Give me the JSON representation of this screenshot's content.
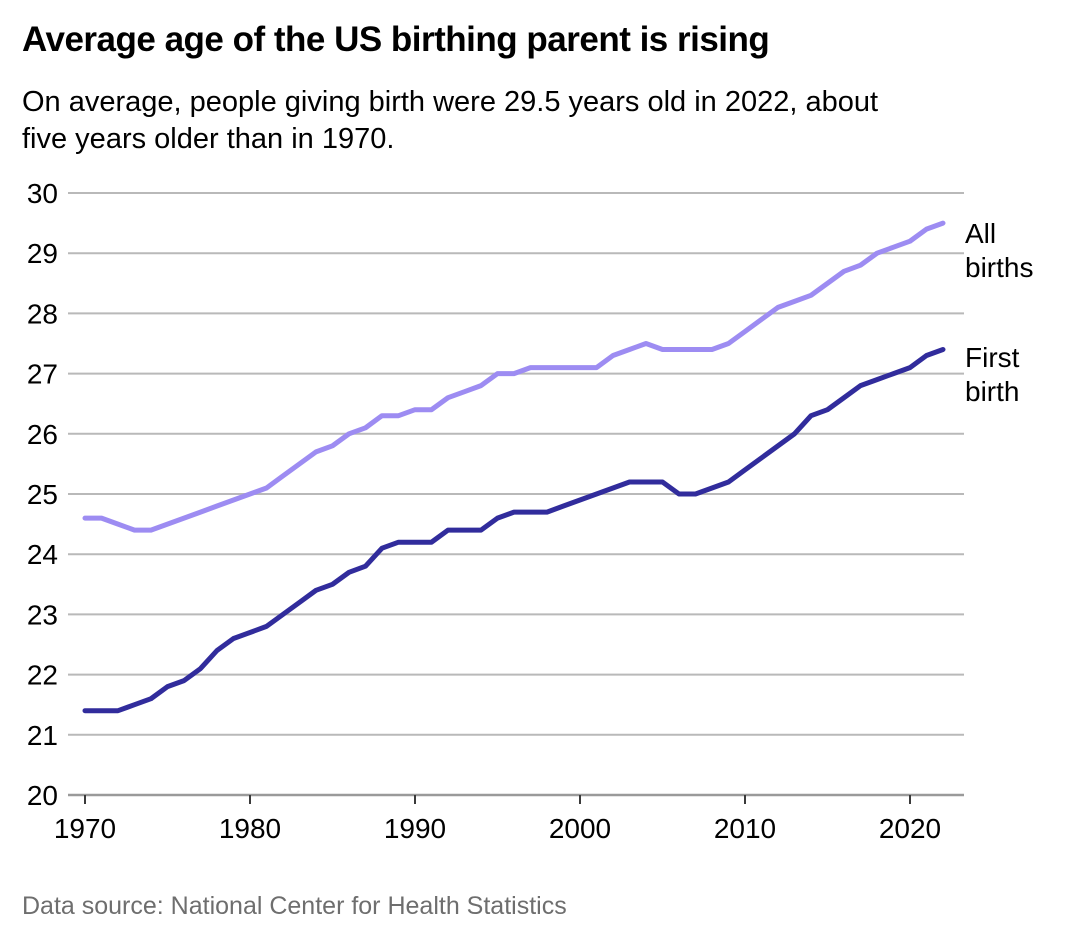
{
  "header": {
    "title": "Average age of the US birthing parent is rising",
    "subtitle_line1": "On average, people giving birth were 29.5 years old in 2022, about",
    "subtitle_line2": "five years older than in 1970."
  },
  "footer": {
    "source": "Data source: National Center for Health Statistics"
  },
  "chart_data": {
    "type": "line",
    "title": "Average age of the US birthing parent is rising",
    "subtitle": "On average, people giving birth were 29.5 years old in 2022, about five years older than in 1970.",
    "xlabel": "",
    "ylabel": "",
    "x": [
      1970,
      1971,
      1972,
      1973,
      1974,
      1975,
      1976,
      1977,
      1978,
      1979,
      1980,
      1981,
      1982,
      1983,
      1984,
      1985,
      1986,
      1987,
      1988,
      1989,
      1990,
      1991,
      1992,
      1993,
      1994,
      1995,
      1996,
      1997,
      1998,
      1999,
      2000,
      2001,
      2002,
      2003,
      2004,
      2005,
      2006,
      2007,
      2008,
      2009,
      2010,
      2011,
      2012,
      2013,
      2014,
      2015,
      2016,
      2017,
      2018,
      2019,
      2020,
      2021,
      2022
    ],
    "series": [
      {
        "name": "All births",
        "color": "#9d8cf2",
        "values": [
          24.6,
          24.6,
          24.5,
          24.4,
          24.4,
          24.5,
          24.6,
          24.7,
          24.8,
          24.9,
          25.0,
          25.1,
          25.3,
          25.5,
          25.7,
          25.8,
          26.0,
          26.1,
          26.3,
          26.3,
          26.4,
          26.4,
          26.6,
          26.7,
          26.8,
          27.0,
          27.0,
          27.1,
          27.1,
          27.1,
          27.1,
          27.1,
          27.3,
          27.4,
          27.5,
          27.4,
          27.4,
          27.4,
          27.4,
          27.5,
          27.7,
          27.9,
          28.1,
          28.2,
          28.3,
          28.5,
          28.7,
          28.8,
          29.0,
          29.1,
          29.2,
          29.4,
          29.5
        ]
      },
      {
        "name": "First birth",
        "color": "#312c9c",
        "values": [
          21.4,
          21.4,
          21.4,
          21.5,
          21.6,
          21.8,
          21.9,
          22.1,
          22.4,
          22.6,
          22.7,
          22.8,
          23.0,
          23.2,
          23.4,
          23.5,
          23.7,
          23.8,
          24.1,
          24.2,
          24.2,
          24.2,
          24.4,
          24.4,
          24.4,
          24.6,
          24.7,
          24.7,
          24.7,
          24.8,
          24.9,
          25.0,
          25.1,
          25.2,
          25.2,
          25.2,
          25.0,
          25.0,
          25.1,
          25.2,
          25.4,
          25.6,
          25.8,
          26.0,
          26.3,
          26.4,
          26.6,
          26.8,
          26.9,
          27.0,
          27.1,
          27.3,
          27.4
        ]
      }
    ],
    "xlim": [
      1969,
      2023.3
    ],
    "ylim": [
      20,
      30
    ],
    "y_ticks": [
      20,
      21,
      22,
      23,
      24,
      25,
      26,
      27,
      28,
      29,
      30
    ],
    "x_ticks": [
      1970,
      1980,
      1990,
      2000,
      2010,
      2020
    ],
    "grid": true,
    "legend_position": "right-of-line-ends",
    "colors": {
      "gridline": "#b9b9b9",
      "axis_line": "#9a9a9a",
      "tick_mark": "#3a3a3a",
      "tick_label": "#000000",
      "source_text": "#6e6e6e"
    }
  }
}
